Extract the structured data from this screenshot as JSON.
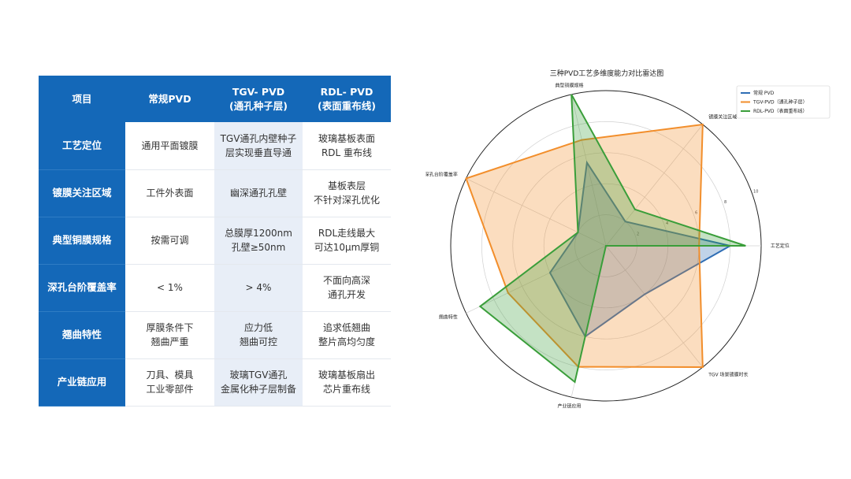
{
  "table": {
    "headers": [
      "项目",
      "常规PVD",
      "TGV-  PVD\n(通孔种子层)",
      "RDL-  PVD\n(表面重布线)"
    ],
    "rows": [
      {
        "label": "工艺定位",
        "cells": [
          "通用平面镀膜",
          "TGV通孔内壁种子\n层实现垂直导通",
          "玻璃基板表面\nRDL 重布线"
        ]
      },
      {
        "label": "镀膜关注区域",
        "cells": [
          "工件外表面",
          "幽深通孔孔壁",
          "基板表层\n不针对深孔优化"
        ]
      },
      {
        "label": "典型铜膜规格",
        "cells": [
          "按需可调",
          "总膜厚1200nm\n孔壁≥50nm",
          "RDL走线最大\n可达10μm厚铜"
        ]
      },
      {
        "label": "深孔台阶覆盖率",
        "cells": [
          "< 1%",
          "> 4%",
          "不面向高深\n通孔开发"
        ]
      },
      {
        "label": "翘曲特性",
        "cells": [
          "厚膜条件下\n翘曲严重",
          "应力低\n翘曲可控",
          "追求低翘曲\n整片高均匀度"
        ]
      },
      {
        "label": "产业链应用",
        "cells": [
          "刀具、模具\n工业零部件",
          "玻璃TGV通孔\n金属化种子层制备",
          "玻璃基板扇出\n芯片重布线"
        ]
      }
    ]
  },
  "chart_data": {
    "type": "radar",
    "title": "三种PVD工艺多维度能力对比雷达图",
    "axes": [
      "工艺定位",
      "镀膜关注区域",
      "典型铜膜规格",
      "深孔台阶覆盖率",
      "翘曲特性",
      "产业链应用",
      "TGV 场景镀膜时长"
    ],
    "rlim": [
      0,
      10
    ],
    "rticks": [
      2,
      4,
      6,
      8,
      10
    ],
    "series": [
      {
        "name": "常规 PVD",
        "color": "#2e6db4",
        "values": [
          8,
          2,
          5.5,
          2,
          4,
          6,
          4
        ]
      },
      {
        "name": "TGV-PVD（通孔种子层）",
        "color": "#f28e2b",
        "values": [
          6,
          10,
          7,
          10,
          7,
          8,
          10
        ]
      },
      {
        "name": "RDL-PVD（表面重布线）",
        "color": "#3a9e3a",
        "values": [
          9,
          3,
          10,
          2,
          9,
          9,
          0
        ]
      }
    ],
    "legend_position": "top-right",
    "grid": true
  }
}
